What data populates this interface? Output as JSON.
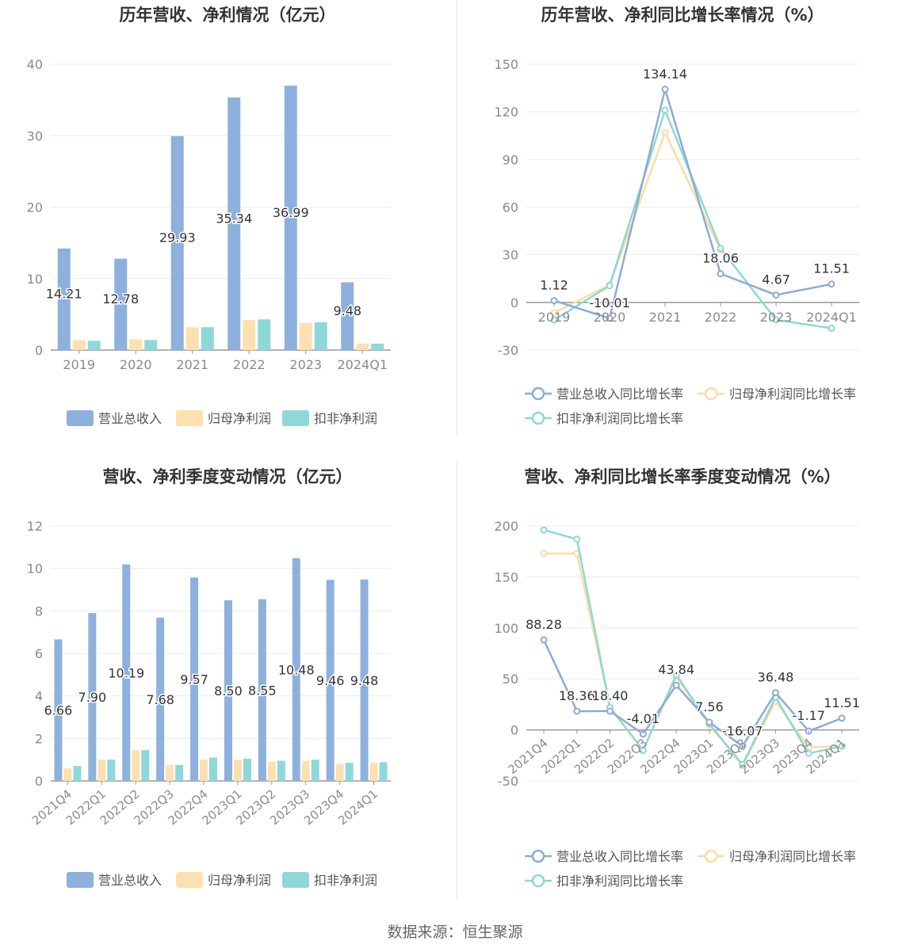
{
  "footer": "数据来源：恒生聚源",
  "colors": {
    "revenue": "#8eb0dc",
    "net_profit": "#fde0b0",
    "deducted_profit": "#8fd8d9",
    "revenue_line": "#8eaad8",
    "net_profit_line": "#fddca3",
    "deducted_line": "#8dd8d5",
    "title": "#333333",
    "axis_text": "#8a8a8a",
    "grid": "#e8ecf3"
  },
  "chart_data": [
    {
      "type": "bar",
      "title": "历年营收、净利情况（亿元）",
      "categories": [
        "2019",
        "2020",
        "2021",
        "2022",
        "2023",
        "2024Q1"
      ],
      "ylim": [
        0,
        40
      ],
      "yticks": [
        0,
        10,
        20,
        30,
        40
      ],
      "series": [
        {
          "name": "营业总收入",
          "values": [
            14.21,
            12.78,
            29.93,
            35.34,
            36.99,
            9.48
          ],
          "labels": [
            "14.21",
            "12.78",
            "29.93",
            "35.34",
            "36.99",
            "9.48"
          ]
        },
        {
          "name": "归母净利润",
          "values": [
            1.4,
            1.5,
            3.2,
            4.2,
            3.8,
            0.9
          ]
        },
        {
          "name": "扣非净利润",
          "values": [
            1.3,
            1.4,
            3.2,
            4.3,
            3.9,
            0.9
          ]
        }
      ],
      "legend": "bottom",
      "grid": true
    },
    {
      "type": "line",
      "title": "历年营收、净利同比增长率情况（%）",
      "categories": [
        "2019",
        "2020",
        "2021",
        "2022",
        "2023",
        "2024Q1"
      ],
      "ylim": [
        -30,
        150
      ],
      "yticks": [
        -30,
        0,
        30,
        60,
        90,
        120,
        150
      ],
      "series": [
        {
          "name": "营业总收入同比增长率",
          "values": [
            1.12,
            -10.01,
            134.14,
            18.06,
            4.67,
            11.51
          ],
          "labels": [
            "1.12",
            "-10.01",
            "134.14",
            "18.06",
            "4.67",
            "11.51"
          ]
        },
        {
          "name": "归母净利润同比增长率",
          "values": [
            -6.5,
            11.0,
            107.0,
            33.0,
            null,
            null
          ]
        },
        {
          "name": "扣非净利润同比增长率",
          "values": [
            -11.0,
            10.5,
            121.0,
            34.0,
            -11.0,
            -16.3
          ]
        }
      ],
      "legend": "bottom",
      "grid": true
    },
    {
      "type": "bar",
      "title": "营收、净利季度变动情况（亿元）",
      "categories": [
        "2021Q4",
        "2022Q1",
        "2022Q2",
        "2022Q3",
        "2022Q4",
        "2023Q1",
        "2023Q2",
        "2023Q3",
        "2023Q4",
        "2024Q1"
      ],
      "ylim": [
        0,
        12
      ],
      "yticks": [
        0,
        2,
        4,
        6,
        8,
        10,
        12
      ],
      "series": [
        {
          "name": "营业总收入",
          "values": [
            6.66,
            7.9,
            10.19,
            7.68,
            9.57,
            8.5,
            8.55,
            10.48,
            9.46,
            9.48
          ],
          "labels": [
            "6.66",
            "7.90",
            "10.19",
            "7.68",
            "9.57",
            "8.50",
            "8.55",
            "10.48",
            "9.46",
            "9.48"
          ]
        },
        {
          "name": "归母净利润",
          "values": [
            0.6,
            1.0,
            1.45,
            0.75,
            1.0,
            1.0,
            0.9,
            0.95,
            0.8,
            0.85
          ]
        },
        {
          "name": "扣非净利润",
          "values": [
            0.7,
            1.0,
            1.45,
            0.75,
            1.1,
            1.05,
            0.95,
            1.0,
            0.85,
            0.88
          ]
        }
      ],
      "legend": "bottom",
      "grid": true
    },
    {
      "type": "line",
      "title": "营收、净利同比增长率季度变动情况（%）",
      "categories": [
        "2021Q4",
        "2022Q1",
        "2022Q2",
        "2022Q3",
        "2022Q4",
        "2023Q1",
        "2023Q2",
        "2023Q3",
        "2023Q4",
        "2024Q1"
      ],
      "ylim": [
        -50,
        200
      ],
      "yticks": [
        -50,
        0,
        50,
        100,
        150,
        200
      ],
      "series": [
        {
          "name": "营业总收入同比增长率",
          "values": [
            88.28,
            18.36,
            18.4,
            -4.01,
            43.84,
            7.56,
            -16.07,
            36.48,
            -1.17,
            11.51
          ],
          "labels": [
            "88.28",
            "18.36",
            "18.40",
            "-4.01",
            "43.84",
            "7.56",
            "-16.07",
            "36.48",
            "-1.17",
            "11.51"
          ]
        },
        {
          "name": "归母净利润同比增长率",
          "values": [
            173.0,
            173.0,
            22.0,
            -20.0,
            52.0,
            5.0,
            -35.0,
            28.0,
            -17.0,
            -16.0
          ]
        },
        {
          "name": "扣非净利润同比增长率",
          "values": [
            196.0,
            187.0,
            22.0,
            -20.0,
            54.0,
            6.0,
            -34.0,
            32.0,
            -23.0,
            -16.0
          ]
        }
      ],
      "legend": "bottom",
      "grid": true
    }
  ]
}
